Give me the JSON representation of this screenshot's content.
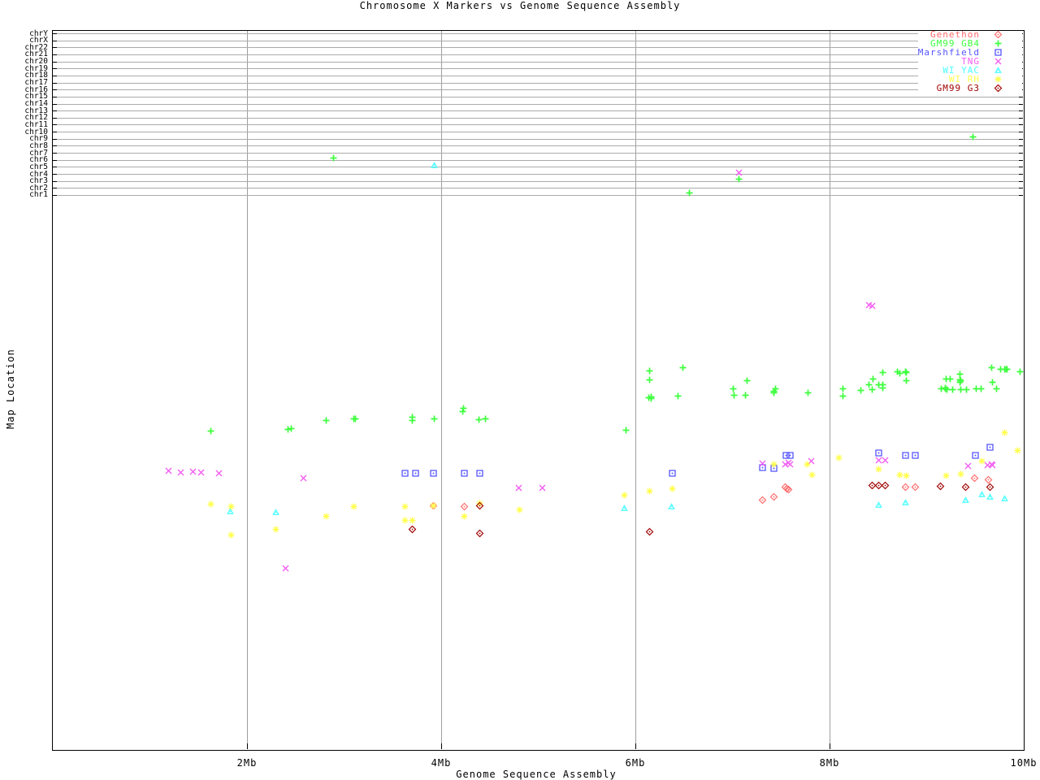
{
  "title": "Chromosome X Markers vs Genome Sequence Assembly",
  "axes": {
    "x_label": "Genome Sequence Assembly",
    "y_label": "Map Location",
    "x_ticks": [
      {
        "label": "2Mb",
        "mb": 2
      },
      {
        "label": "4Mb",
        "mb": 4
      },
      {
        "label": "6Mb",
        "mb": 6
      },
      {
        "label": "8Mb",
        "mb": 8
      },
      {
        "label": "10Mb",
        "mb": 10
      }
    ],
    "x_range_mb": [
      0,
      10
    ]
  },
  "chromosome_rows": [
    "chrY",
    "chrX",
    "chr22",
    "chr21",
    "chr20",
    "chr19",
    "chr18",
    "chr17",
    "chr16",
    "chr15",
    "chr14",
    "chr13",
    "chr12",
    "chr11",
    "chr10",
    "chr9",
    "chr8",
    "chr7",
    "chr6",
    "chr5",
    "chr4",
    "chr3",
    "chr2",
    "chr1"
  ],
  "colors": {
    "grid": "#ababab",
    "axis": "#000000"
  },
  "chart_data": {
    "type": "scatter",
    "title": "Chromosome X Markers vs Genome Sequence Assembly",
    "xlabel": "Genome Sequence Assembly",
    "ylabel": "Map Location",
    "x_unit": "Mb",
    "y_note": "upper band = other chromosome rows (chrom_points = [chromosome, Mb]); lower band y = unlabeled map-location position in screen px",
    "legend_position": "top-right",
    "series": [
      {
        "name": "Genethon",
        "color": "#ff6a6a",
        "marker": "diamond-dot",
        "chrom_points": [],
        "points": [
          [
            3.92,
            622
          ],
          [
            4.24,
            623
          ],
          [
            7.31,
            615
          ],
          [
            7.43,
            611
          ],
          [
            7.54,
            599
          ],
          [
            7.56,
            601
          ],
          [
            7.58,
            602
          ],
          [
            8.78,
            599
          ],
          [
            8.88,
            599
          ],
          [
            9.49,
            588
          ],
          [
            9.64,
            590
          ]
        ]
      },
      {
        "name": "GM99 GB4",
        "color": "#3dff3d",
        "marker": "plus",
        "chrom_points": [
          [
            "chr9",
            9.48
          ],
          [
            "chr6",
            2.89
          ],
          [
            "chr3",
            7.07
          ],
          [
            "chr1",
            6.56
          ]
        ],
        "points": [
          [
            1.63,
            530
          ],
          [
            2.42,
            528
          ],
          [
            2.46,
            527
          ],
          [
            2.82,
            517
          ],
          [
            3.1,
            515
          ],
          [
            3.12,
            515
          ],
          [
            3.7,
            513
          ],
          [
            3.7,
            517
          ],
          [
            3.93,
            515
          ],
          [
            4.22,
            506
          ],
          [
            4.23,
            502
          ],
          [
            4.39,
            516
          ],
          [
            4.46,
            515
          ],
          [
            5.9,
            529
          ],
          [
            6.15,
            456
          ],
          [
            6.15,
            467
          ],
          [
            6.14,
            489
          ],
          [
            6.16,
            488
          ],
          [
            6.16,
            490
          ],
          [
            6.44,
            487
          ],
          [
            6.49,
            452
          ],
          [
            7.01,
            478
          ],
          [
            7.02,
            486
          ],
          [
            7.13,
            486
          ],
          [
            7.15,
            468
          ],
          [
            7.43,
            483
          ],
          [
            7.44,
            478
          ],
          [
            7.43,
            481
          ],
          [
            7.78,
            483
          ],
          [
            8.14,
            478
          ],
          [
            8.14,
            487
          ],
          [
            8.32,
            480
          ],
          [
            8.41,
            473
          ],
          [
            8.45,
            466
          ],
          [
            8.44,
            479
          ],
          [
            8.51,
            473
          ],
          [
            8.55,
            458
          ],
          [
            8.55,
            473
          ],
          [
            8.55,
            477
          ],
          [
            8.7,
            457
          ],
          [
            8.72,
            459
          ],
          [
            8.78,
            457
          ],
          [
            8.79,
            458
          ],
          [
            8.79,
            468
          ],
          [
            9.15,
            478
          ],
          [
            9.19,
            477
          ],
          [
            9.19,
            478
          ],
          [
            9.21,
            479
          ],
          [
            9.2,
            466
          ],
          [
            9.24,
            466
          ],
          [
            9.27,
            479
          ],
          [
            9.34,
            460
          ],
          [
            9.34,
            467
          ],
          [
            9.35,
            468
          ],
          [
            9.34,
            470
          ],
          [
            9.35,
            479
          ],
          [
            9.41,
            479
          ],
          [
            9.51,
            478
          ],
          [
            9.56,
            478
          ],
          [
            9.67,
            452
          ],
          [
            9.68,
            470
          ],
          [
            9.72,
            478
          ],
          [
            9.76,
            454
          ],
          [
            9.8,
            454
          ],
          [
            9.82,
            454
          ],
          [
            9.83,
            454
          ],
          [
            9.96,
            457
          ]
        ]
      },
      {
        "name": "Marshfield",
        "color": "#5555ff",
        "marker": "square-dot",
        "chrom_points": [],
        "points": [
          [
            3.63,
            582
          ],
          [
            3.74,
            582
          ],
          [
            3.92,
            582
          ],
          [
            4.24,
            582
          ],
          [
            4.4,
            582
          ],
          [
            6.38,
            582
          ],
          [
            7.31,
            575
          ],
          [
            7.43,
            576
          ],
          [
            7.55,
            560
          ],
          [
            7.59,
            560
          ],
          [
            8.51,
            557
          ],
          [
            8.78,
            560
          ],
          [
            8.88,
            560
          ],
          [
            9.5,
            560
          ],
          [
            9.65,
            550
          ]
        ]
      },
      {
        "name": "TNG",
        "color": "#f25df2",
        "marker": "cross",
        "chrom_points": [
          [
            "chr4",
            7.07
          ]
        ],
        "points": [
          [
            1.19,
            579
          ],
          [
            1.32,
            581
          ],
          [
            1.44,
            580
          ],
          [
            1.53,
            581
          ],
          [
            1.71,
            582
          ],
          [
            2.4,
            699
          ],
          [
            2.58,
            588
          ],
          [
            4.8,
            600
          ],
          [
            5.04,
            600
          ],
          [
            7.31,
            570
          ],
          [
            7.54,
            571
          ],
          [
            7.58,
            569
          ],
          [
            7.59,
            571
          ],
          [
            7.81,
            567
          ],
          [
            8.41,
            375
          ],
          [
            8.44,
            376
          ],
          [
            8.51,
            566
          ],
          [
            8.57,
            566
          ],
          [
            9.43,
            573
          ],
          [
            9.63,
            572
          ],
          [
            9.67,
            571
          ],
          [
            9.68,
            572
          ]
        ]
      },
      {
        "name": "WI YAC",
        "color": "#4dffff",
        "marker": "triangle-dot",
        "chrom_points": [
          [
            "chr5",
            3.93
          ]
        ],
        "points": [
          [
            1.83,
            629
          ],
          [
            2.3,
            630
          ],
          [
            5.89,
            625
          ],
          [
            6.37,
            623
          ],
          [
            8.51,
            621
          ],
          [
            8.78,
            618
          ],
          [
            9.4,
            615
          ],
          [
            9.57,
            608
          ],
          [
            9.65,
            611
          ],
          [
            9.8,
            613
          ]
        ]
      },
      {
        "name": "WI RH",
        "color": "#ffff4d",
        "marker": "asterisk",
        "chrom_points": [],
        "points": [
          [
            1.63,
            620
          ],
          [
            1.84,
            623
          ],
          [
            1.84,
            658
          ],
          [
            2.3,
            651
          ],
          [
            2.82,
            635
          ],
          [
            3.1,
            623
          ],
          [
            3.63,
            623
          ],
          [
            3.92,
            622
          ],
          [
            3.63,
            640
          ],
          [
            3.7,
            640
          ],
          [
            4.24,
            635
          ],
          [
            4.4,
            619
          ],
          [
            4.81,
            627
          ],
          [
            5.89,
            609
          ],
          [
            6.15,
            604
          ],
          [
            6.38,
            601
          ],
          [
            7.43,
            571
          ],
          [
            7.77,
            571
          ],
          [
            7.82,
            584
          ],
          [
            8.1,
            563
          ],
          [
            8.51,
            577
          ],
          [
            8.72,
            584
          ],
          [
            8.79,
            585
          ],
          [
            9.2,
            585
          ],
          [
            9.35,
            583
          ],
          [
            9.57,
            567
          ],
          [
            9.8,
            532
          ],
          [
            9.94,
            554
          ]
        ]
      },
      {
        "name": "GM99 G3",
        "color": "#a00000",
        "marker": "diamond-dot",
        "chrom_points": [],
        "points": [
          [
            3.7,
            651
          ],
          [
            4.4,
            622
          ],
          [
            4.4,
            656
          ],
          [
            6.15,
            654
          ],
          [
            8.44,
            597
          ],
          [
            8.51,
            597
          ],
          [
            8.57,
            597
          ],
          [
            9.14,
            598
          ],
          [
            9.4,
            599
          ],
          [
            9.65,
            599
          ]
        ]
      }
    ]
  }
}
